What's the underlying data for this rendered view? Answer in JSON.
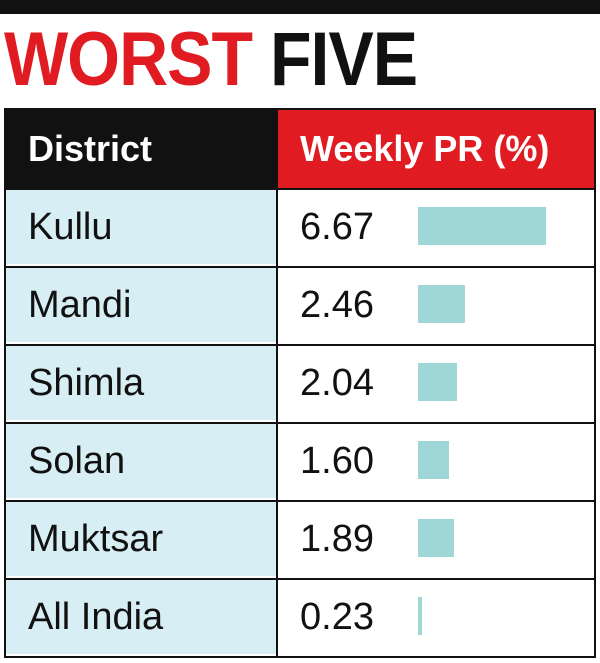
{
  "title": {
    "part1": "WORST",
    "part2": "FIVE"
  },
  "colors": {
    "accent_red": "#e11b22",
    "header_dark": "#111111",
    "row_bg": "#d6eef4",
    "bar": "#9fd6d6"
  },
  "chart_data": {
    "type": "table",
    "title": "WORST FIVE",
    "columns": [
      "District",
      "Weekly PR (%)"
    ],
    "categories": [
      "Kullu",
      "Mandi",
      "Shimla",
      "Solan",
      "Muktsar",
      "All India"
    ],
    "value_labels": [
      "6.67",
      "2.46",
      "2.04",
      "1.60",
      "1.89",
      "0.23"
    ],
    "values": [
      6.67,
      2.46,
      2.04,
      1.6,
      1.89,
      0.23
    ]
  }
}
